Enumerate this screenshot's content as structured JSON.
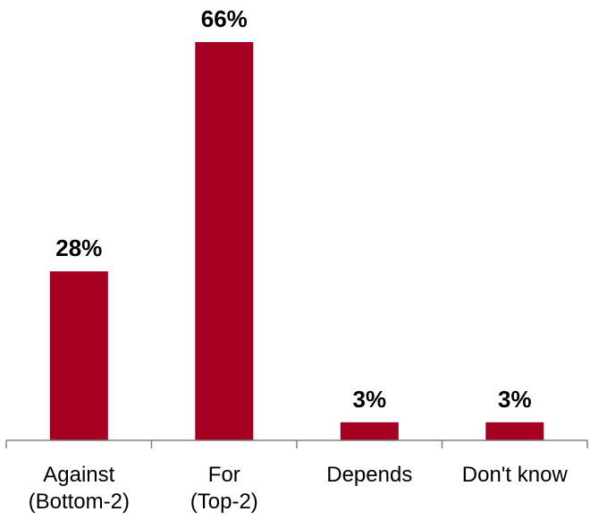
{
  "chart_data": {
    "type": "bar",
    "categories": [
      [
        "Against",
        "(Bottom-2)"
      ],
      [
        "For",
        "(Top-2)"
      ],
      [
        "Depends"
      ],
      [
        "Don't know"
      ]
    ],
    "values": [
      28,
      66,
      3,
      3
    ],
    "value_labels": [
      "28%",
      "66%",
      "3%",
      "3%"
    ],
    "unit": "%",
    "title": "",
    "xlabel": "",
    "ylabel": "",
    "ylim": [
      0,
      66
    ],
    "grid": false,
    "legend": "none",
    "bar_color": "#A50021",
    "axis_color": "#808080"
  }
}
